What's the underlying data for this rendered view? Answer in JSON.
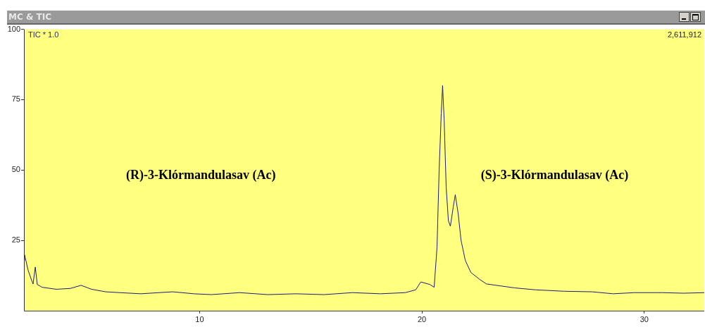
{
  "chart_data": {
    "type": "line",
    "title": "MC & TIC",
    "subtitle": "TIC * 1.0",
    "annotations": [
      "2,611,912",
      "(R)-3-Klórmandulasav (Ac)",
      "(S)-3-Klórmandulasav (Ac)"
    ],
    "xlim": [
      2.1,
      32.7
    ],
    "xticks": [
      10,
      20,
      30
    ],
    "ylim": [
      0,
      100
    ],
    "yticks": [
      25,
      50,
      75,
      100
    ],
    "grid": false,
    "legend": false,
    "marker": "none",
    "line_style": "solid",
    "series": [
      {
        "color": "#1c1c7a",
        "x": [
          2.1,
          2.13,
          2.29,
          2.45,
          2.51,
          2.61,
          2.7,
          2.92,
          3.56,
          4.19,
          4.67,
          5.14,
          5.78,
          6.41,
          7.36,
          8.79,
          9.74,
          10.53,
          11.8,
          13.07,
          14.33,
          15.6,
          16.87,
          18.14,
          19.25,
          19.72,
          19.95,
          20.36,
          20.55,
          20.68,
          20.77,
          20.87,
          20.93,
          21.0,
          21.09,
          21.19,
          21.28,
          21.41,
          21.5,
          21.63,
          21.76,
          21.95,
          22.2,
          22.58,
          22.9,
          23.53,
          24.16,
          25.11,
          26.38,
          27.65,
          28.6,
          29.55,
          30.82,
          31.77,
          32.7
        ],
        "values": [
          17.9,
          19.8,
          14.3,
          10.7,
          9.5,
          15.5,
          9.3,
          8.3,
          7.6,
          7.9,
          9.0,
          7.6,
          6.7,
          6.4,
          6.0,
          6.7,
          6.0,
          5.7,
          6.4,
          5.7,
          6.0,
          5.7,
          6.4,
          6.0,
          6.4,
          7.4,
          10.2,
          9.3,
          8.3,
          22.6,
          48.8,
          70.2,
          80,
          67.9,
          44,
          32,
          30,
          36.9,
          41.2,
          34.5,
          25,
          17.9,
          13.6,
          11.2,
          9.5,
          8.8,
          8.1,
          7.4,
          6.9,
          6.7,
          6.0,
          6.4,
          6.4,
          6.2,
          6.4
        ]
      }
    ]
  }
}
